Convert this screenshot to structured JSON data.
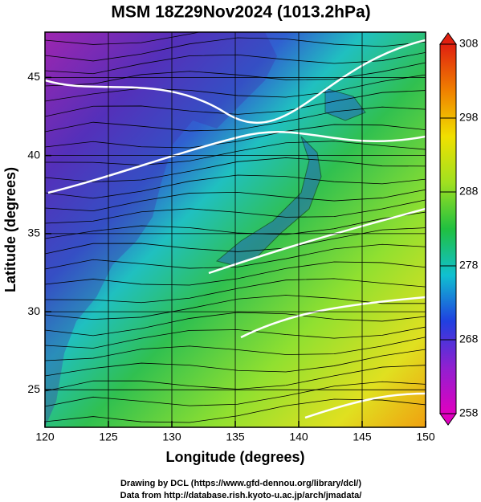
{
  "chart_data": {
    "type": "map",
    "title": "MSM 18Z29Nov2024 (1013.2hPa)",
    "xlabel": "Longitude (degrees)",
    "ylabel": "Latitude  (degrees)",
    "xlim": [
      120,
      150
    ],
    "ylim": [
      22.6,
      47.9
    ],
    "xticks": [
      120,
      125,
      130,
      135,
      140,
      145,
      150
    ],
    "yticks": [
      25,
      30,
      35,
      40,
      45
    ],
    "grid": true,
    "colorbar": {
      "lim": [
        258,
        308
      ],
      "ticks": [
        258,
        268,
        278,
        288,
        298,
        308
      ],
      "colors": [
        "#e000c0",
        "#9020d0",
        "#2040e0",
        "#10c0d0",
        "#20c040",
        "#a0e020",
        "#f0e000",
        "#f08000",
        "#e02010"
      ]
    },
    "credits": [
      "Drawing by DCL (https://www.gfd-dennou.org/library/dcl/)",
      "Data from http://database.rish.kyoto-u.ac.jp/arch/jmadata/"
    ]
  }
}
